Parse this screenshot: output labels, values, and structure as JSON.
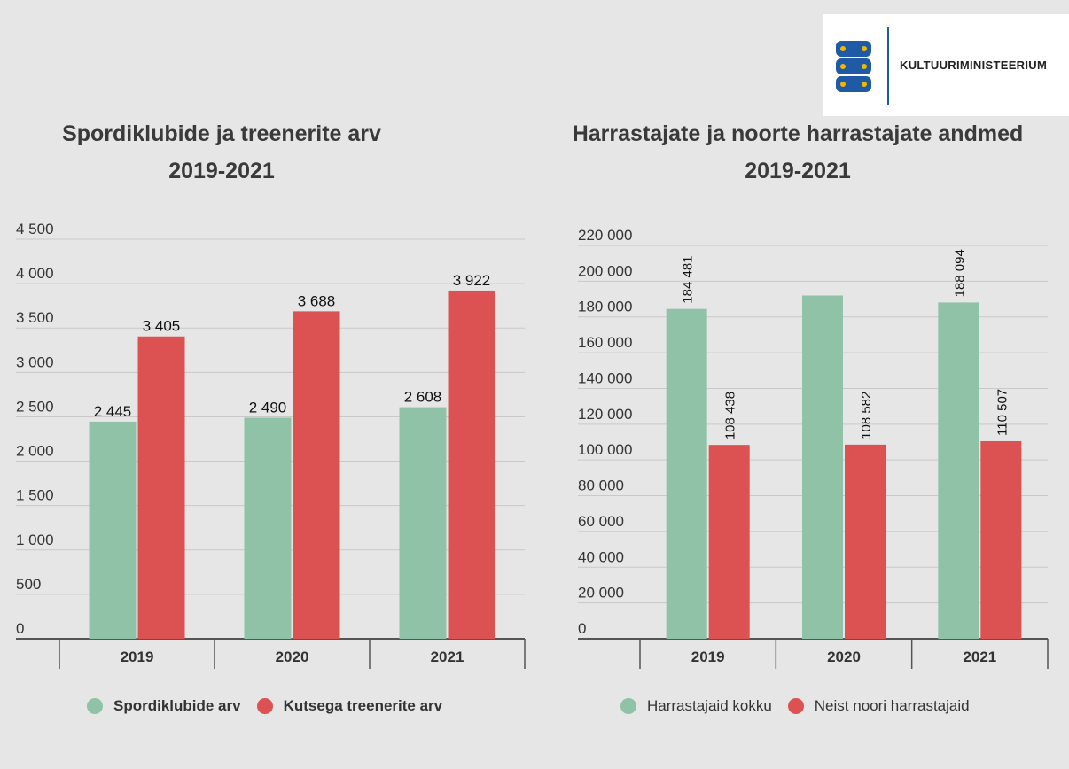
{
  "logo": {
    "text": "KULTUURIMINISTEERIUM"
  },
  "colors": {
    "green": "#8fc2a6",
    "red": "#dc5151",
    "background": "#e6e6e6"
  },
  "chart_data": [
    {
      "type": "bar",
      "title": "Spordiklubide ja treenerite arv",
      "subtitle": "2019-2021",
      "categories": [
        "2019",
        "2020",
        "2021"
      ],
      "series": [
        {
          "name": "Spordiklubide arv",
          "values": [
            2445,
            2490,
            2608
          ]
        },
        {
          "name": "Kutsega treenerite arv",
          "values": [
            3405,
            3688,
            3922
          ]
        }
      ],
      "data_labels": [
        [
          "2 445",
          "2 490",
          "2 608"
        ],
        [
          "3 405",
          "3 688",
          "3 922"
        ]
      ],
      "yticks": [
        "0",
        "500",
        "1 000",
        "1 500",
        "2 000",
        "2 500",
        "3 000",
        "3 500",
        "4 000",
        "4 500"
      ],
      "ylim": [
        0,
        4500
      ],
      "grid": true,
      "legend": "bottom"
    },
    {
      "type": "bar",
      "title": "Harrastajate ja noorte harrastajate andmed",
      "subtitle": "2019-2021",
      "categories": [
        "2019",
        "2020",
        "2021"
      ],
      "series": [
        {
          "name": "Harrastajaid kokku",
          "values": [
            184481,
            192000,
            188094
          ]
        },
        {
          "name": "Neist noori harrastajaid",
          "values": [
            108438,
            108582,
            110507
          ]
        }
      ],
      "data_labels": [
        [
          "184 481",
          "",
          "188 094"
        ],
        [
          "108 438",
          "108 582",
          "110 507"
        ]
      ],
      "yticks": [
        "0",
        "20 000",
        "40 000",
        "60 000",
        "80 000",
        "100 000",
        "120 000",
        "140 000",
        "160 000",
        "180 000",
        "200 000",
        "220 000"
      ],
      "ylim": [
        0,
        220000
      ],
      "grid": true,
      "legend": "bottom"
    }
  ]
}
